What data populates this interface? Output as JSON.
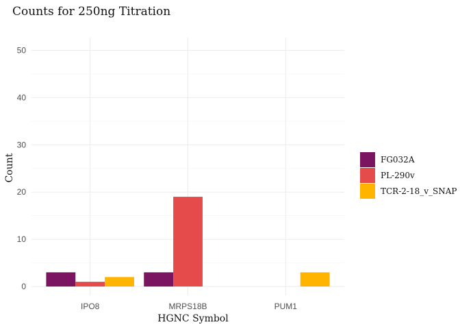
{
  "chart_data": {
    "type": "bar",
    "title": "Counts for 250ng Titration",
    "xlabel": "HGNC Symbol",
    "ylabel": "Count",
    "categories": [
      "IPO8",
      "MRPS18B",
      "PUM1"
    ],
    "series": [
      {
        "name": "FG032A",
        "color": "#7b1561",
        "values": [
          3,
          3,
          0
        ]
      },
      {
        "name": "PL-290v",
        "color": "#e64b4b",
        "values": [
          1,
          19,
          0
        ]
      },
      {
        "name": "TCR-2-18_v_SNAP",
        "color": "#ffb500",
        "values": [
          2,
          0,
          3
        ]
      }
    ],
    "ylim": [
      0,
      50
    ],
    "yticks": [
      0,
      10,
      20,
      30,
      40,
      50
    ],
    "grid": true,
    "legend": "right"
  }
}
